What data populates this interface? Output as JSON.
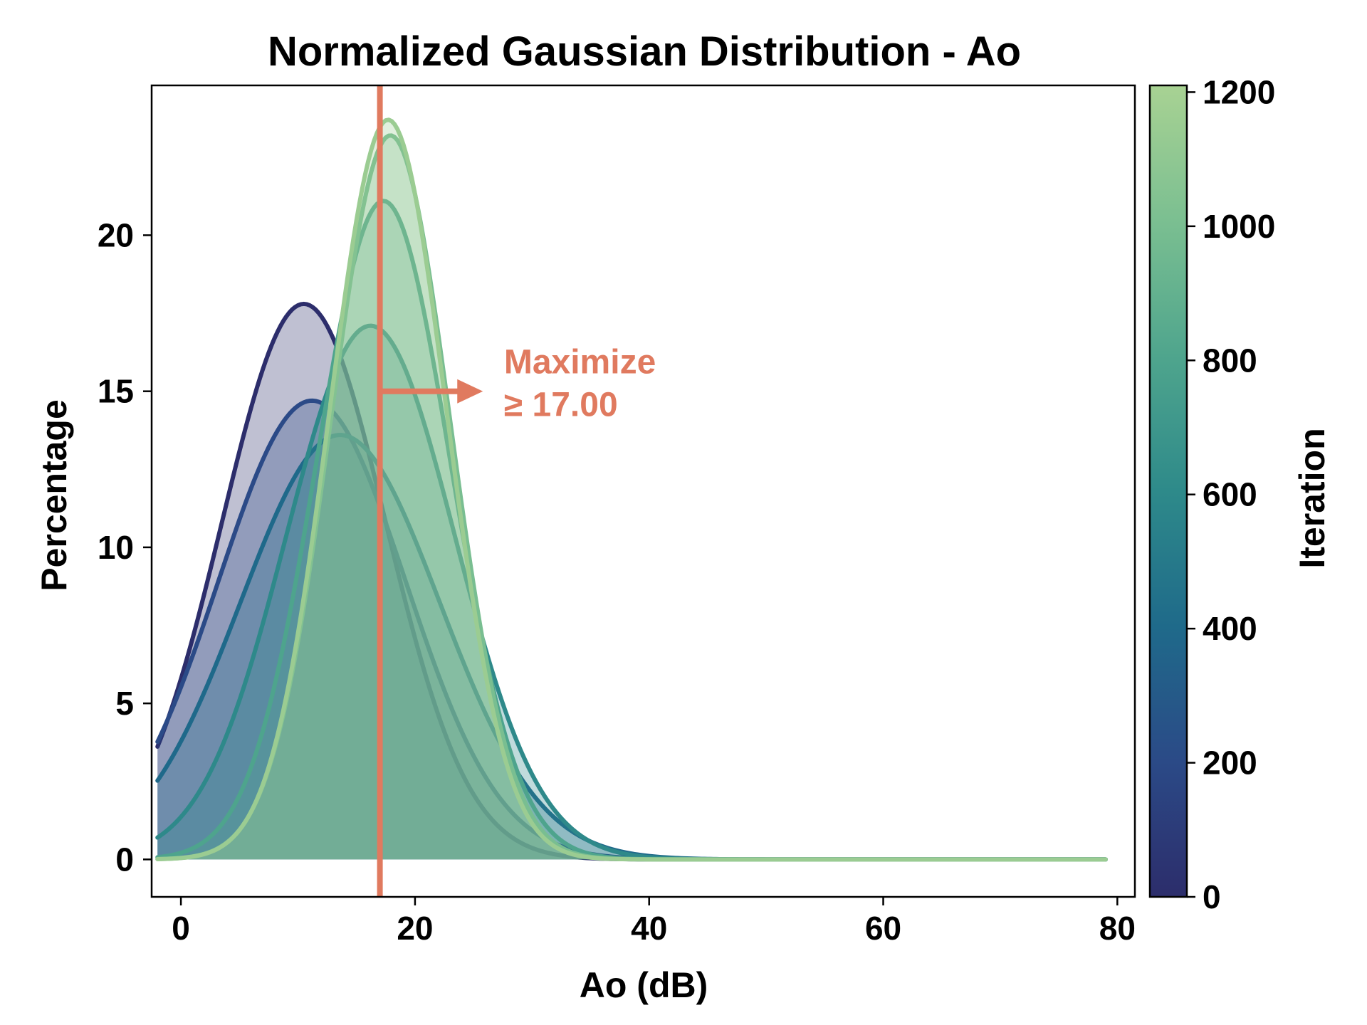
{
  "chart_data": {
    "type": "area",
    "title": "Normalized Gaussian Distribution - Ao",
    "xlabel": "Ao (dB)",
    "ylabel": "Percentage",
    "xlim": [
      -2.5,
      81.5
    ],
    "ylim": [
      -1.2,
      24.8
    ],
    "x_range": [
      -2,
      79
    ],
    "xticks": [
      0,
      20,
      40,
      60,
      80
    ],
    "yticks": [
      0,
      5,
      10,
      15,
      20
    ],
    "xtick_labels": [
      "0",
      "20",
      "40",
      "60",
      "80"
    ],
    "ytick_labels": [
      "0",
      "5",
      "10",
      "15",
      "20"
    ],
    "series": [
      {
        "iteration": 0,
        "mean": 10.5,
        "std": 7.0,
        "peak": 17.8
      },
      {
        "iteration": 200,
        "mean": 11.2,
        "std": 8.0,
        "peak": 14.7
      },
      {
        "iteration": 400,
        "mean": 13.6,
        "std": 8.5,
        "peak": 13.6
      },
      {
        "iteration": 600,
        "mean": 16.2,
        "std": 7.2,
        "peak": 17.1
      },
      {
        "iteration": 800,
        "mean": 17.3,
        "std": 5.7,
        "peak": 21.1
      },
      {
        "iteration": 1000,
        "mean": 17.9,
        "std": 5.1,
        "peak": 23.2
      },
      {
        "iteration": 1150,
        "mean": 17.7,
        "std": 5.0,
        "peak": 23.7
      }
    ],
    "threshold": {
      "value": 17.0,
      "direction": "maximize",
      "label_line1": "Maximize",
      "label_line2": "≥ 17.00",
      "color": "#e07a5f"
    },
    "colorbar": {
      "label": "Iteration",
      "range": [
        0,
        1210
      ],
      "ticks": [
        0,
        200,
        400,
        600,
        800,
        1000,
        1200
      ],
      "tick_labels": [
        "0",
        "200",
        "400",
        "600",
        "800",
        "1000",
        "1200"
      ],
      "colormap": [
        "#2c2d6b",
        "#2b4a87",
        "#1f6a8a",
        "#2e8a8a",
        "#4fa58d",
        "#7bbf91",
        "#a8d293"
      ]
    },
    "grid": false
  }
}
